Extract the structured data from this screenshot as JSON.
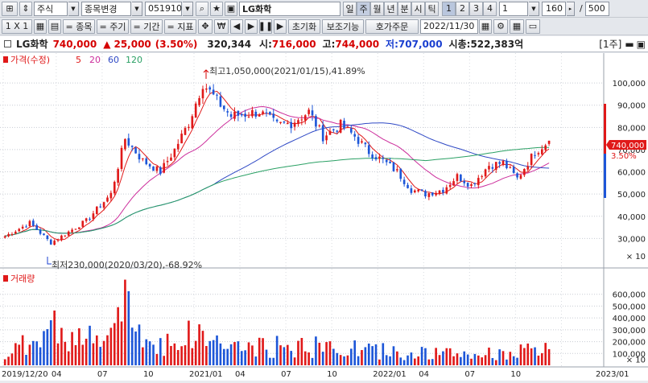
{
  "toolbar": {
    "market": "주식",
    "change_item": "종목변경",
    "code": "051910",
    "name": "LG화학",
    "periods": [
      "일",
      "주",
      "월",
      "년",
      "분",
      "시",
      "틱"
    ],
    "active_period": "주",
    "numbers": [
      "1",
      "2",
      "3",
      "4"
    ],
    "active_number": "1",
    "unit_value": "1",
    "count_value": "160",
    "slash": "/",
    "max_value": "500"
  },
  "toolbar2": {
    "ratio": "1 X 1",
    "items": [
      "= 종목",
      "= 주기",
      "= 기간",
      "= 지표"
    ],
    "reset": "초기화",
    "aux": "보조기능",
    "order": "호가주문",
    "date": "2022/11/30"
  },
  "info": {
    "name": "LG화학",
    "price": "740,000",
    "change_arrow": "▲",
    "change": "25,000",
    "pct": "(3.50%)",
    "volume": "320,344",
    "open_label": "시:",
    "open": "716,000",
    "high_label": "고:",
    "high": "744,000",
    "low_label": "저:",
    "low": "707,000",
    "mcap_label": "시총:",
    "mcap": "522,383억",
    "period_tag": "[1주]"
  },
  "legend": {
    "price": "가격(수정)",
    "ma": [
      "5",
      "20",
      "60",
      "120"
    ],
    "volume": "거래량"
  },
  "annotations": {
    "high": "최고1,050,000(2021/01/15),41.89%",
    "low": "최저230,000(2020/03/20),-68.92%",
    "current_price": "740,000",
    "current_pct": "3.50%"
  },
  "colors": {
    "up": "#e01919",
    "down": "#1d56d8",
    "ma5": "#e01919",
    "ma20": "#cc2e9c",
    "ma60": "#2f49c5",
    "ma120": "#2aa064"
  },
  "chart_data": {
    "type": "candlestick",
    "price_axis": {
      "ticks": [
        30000,
        40000,
        50000,
        60000,
        70000,
        80000,
        90000,
        100000
      ],
      "labels": [
        "30,000",
        "40,000",
        "50,000",
        "60,000",
        "70,000",
        "80,000",
        "90,000",
        "100,000"
      ],
      "unit": "× 10",
      "range": [
        230000,
        1050000
      ]
    },
    "volume_axis": {
      "ticks": [
        100000,
        200000,
        300000,
        400000,
        500000,
        600000
      ],
      "labels": [
        "100,000",
        "200,000",
        "300,000",
        "400,000",
        "500,000",
        "600,000"
      ],
      "unit": "× 10"
    },
    "x_labels": [
      "2019/12/20",
      "04",
      "07",
      "10",
      "2021/01",
      "04",
      "07",
      "10",
      "2022/01",
      "04",
      "07",
      "10",
      "2023/01"
    ],
    "series": [
      {
        "name": "가격(수정)",
        "anchors": [
          [
            "2019/12/20",
            310000
          ],
          [
            "2020/02",
            370000
          ],
          [
            "2020/03/20",
            280000
          ],
          [
            "2020/04",
            300000
          ],
          [
            "2020/06",
            380000
          ],
          [
            "2020/07",
            500000
          ],
          [
            "2020/08",
            750000
          ],
          [
            "2020/09",
            650000
          ],
          [
            "2020/10",
            600000
          ],
          [
            "2020/11",
            700000
          ],
          [
            "2020/12",
            820000
          ],
          [
            "2021/01/15",
            1000000
          ],
          [
            "2021/02",
            920000
          ],
          [
            "2021/03",
            850000
          ],
          [
            "2021/05",
            870000
          ],
          [
            "2021/06",
            810000
          ],
          [
            "2021/07",
            820000
          ],
          [
            "2021/08",
            870000
          ],
          [
            "2021/09",
            760000
          ],
          [
            "2021/10",
            810000
          ],
          [
            "2021/11",
            760000
          ],
          [
            "2021/12",
            690000
          ],
          [
            "2022/01",
            650000
          ],
          [
            "2022/02",
            600000
          ],
          [
            "2022/03",
            520000
          ],
          [
            "2022/04",
            500000
          ],
          [
            "2022/05",
            520000
          ],
          [
            "2022/06",
            580000
          ],
          [
            "2022/07",
            540000
          ],
          [
            "2022/08",
            630000
          ],
          [
            "2022/09",
            640000
          ],
          [
            "2022/10",
            570000
          ],
          [
            "2022/11",
            690000
          ],
          [
            "2022/11/30",
            740000
          ]
        ]
      },
      {
        "name": "5"
      },
      {
        "name": "20"
      },
      {
        "name": "60"
      },
      {
        "name": "120"
      }
    ],
    "volume_anchors": [
      [
        "2019/12/20",
        60000
      ],
      [
        "2020/03",
        320000
      ],
      [
        "2020/06",
        180000
      ],
      [
        "2020/08",
        480000
      ],
      [
        "2020/10",
        170000
      ],
      [
        "2021/01",
        260000
      ],
      [
        "2021/04",
        140000
      ],
      [
        "2021/07",
        160000
      ],
      [
        "2021/10",
        150000
      ],
      [
        "2022/01",
        120000
      ],
      [
        "2022/04",
        100000
      ],
      [
        "2022/07",
        90000
      ],
      [
        "2022/11",
        120000
      ]
    ]
  }
}
